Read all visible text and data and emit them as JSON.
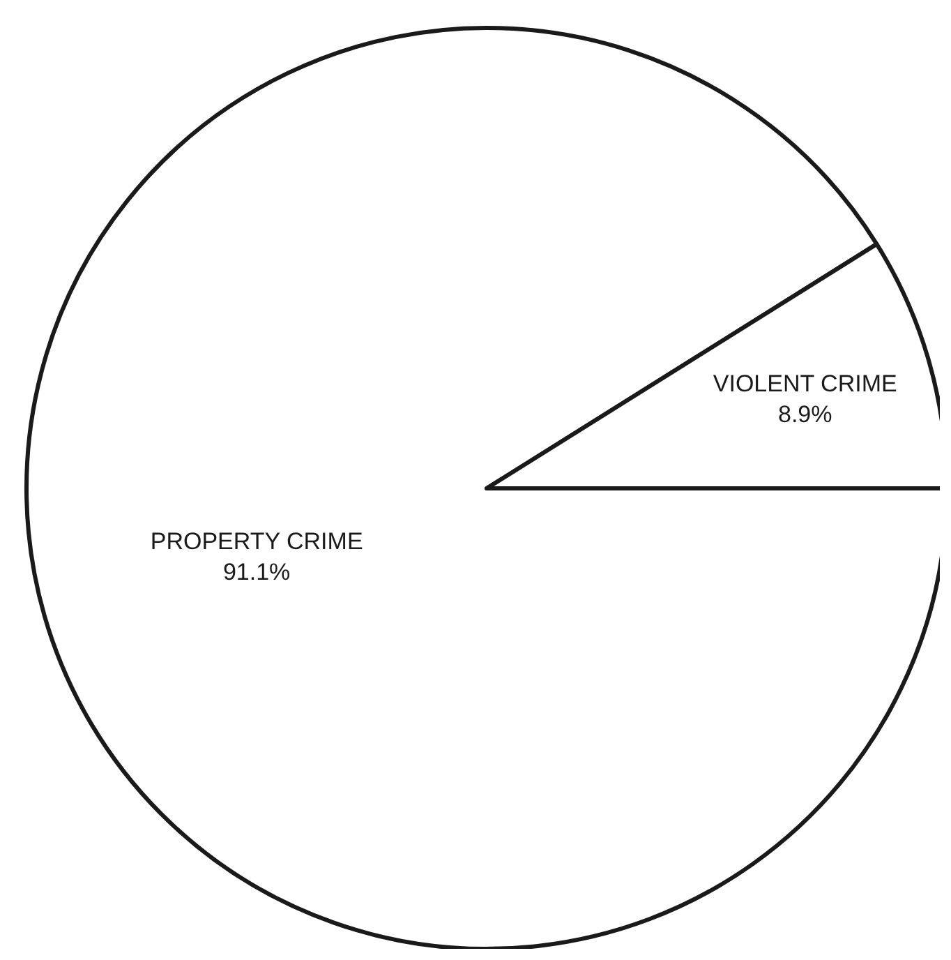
{
  "chart_data": {
    "type": "pie",
    "categories": [
      "PROPERTY CRIME",
      "VIOLENT CRIME"
    ],
    "values": [
      91.1,
      8.9
    ],
    "colors": [
      "#ffffff",
      "#ffffff"
    ],
    "value_labels": [
      "91.1%",
      "8.9%"
    ]
  }
}
